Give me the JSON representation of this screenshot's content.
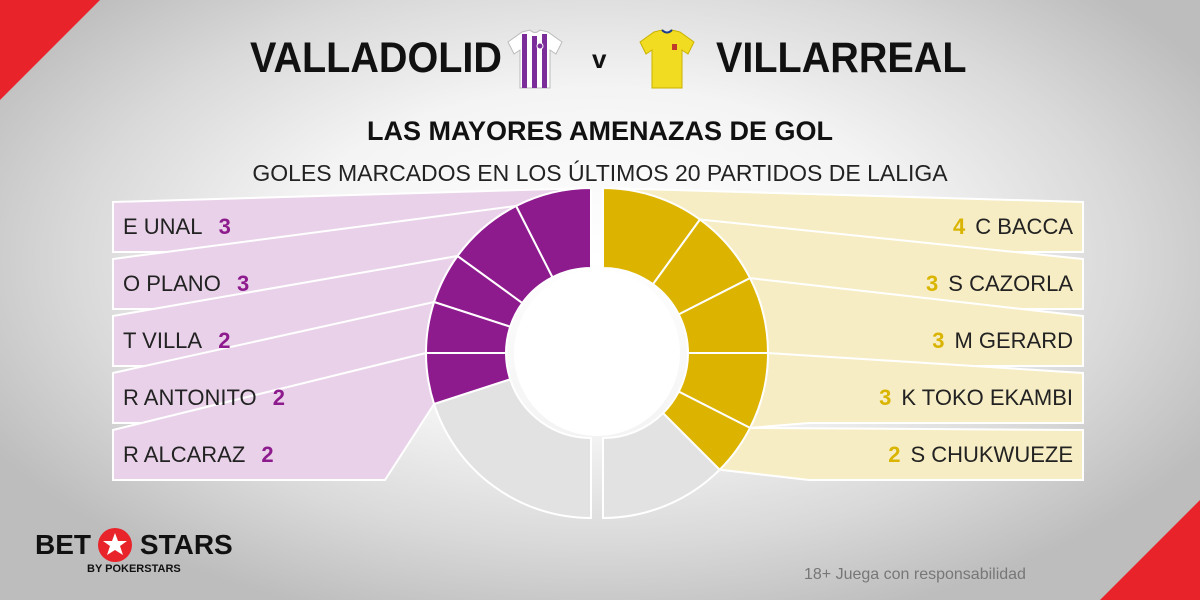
{
  "header": {
    "home_team": "VALLADOLID",
    "away_team": "VILLARREAL",
    "vs": "v",
    "title": "LAS MAYORES AMENAZAS DE GOL",
    "subtitle": "GOLES MARCADOS EN LOS ÚLTIMOS 20 PARTIDOS DE LALIGA"
  },
  "colors": {
    "home": "#8e1b8e",
    "home_light": "#e9d2e9",
    "away": "#dcb400",
    "away_light": "#f7edc4",
    "rest": "#e2e2e2",
    "accent": "#e8232a"
  },
  "chart_data": {
    "type": "pie",
    "series": [
      {
        "name": "VALLADOLID",
        "players": [
          {
            "label": "E UNAL",
            "value": 3
          },
          {
            "label": "O PLANO",
            "value": 3
          },
          {
            "label": "T VILLA",
            "value": 2
          },
          {
            "label": "R ANTONITO",
            "value": 2
          },
          {
            "label": "R ALCARAZ",
            "value": 2
          }
        ]
      },
      {
        "name": "VILLARREAL",
        "players": [
          {
            "label": "C BACCA",
            "value": 4
          },
          {
            "label": "S CAZORLA",
            "value": 3
          },
          {
            "label": "M GERARD",
            "value": 3
          },
          {
            "label": "K TOKO EKAMBI",
            "value": 3
          },
          {
            "label": "S CHUKWUEZE",
            "value": 2
          }
        ]
      }
    ]
  },
  "brand": {
    "left": "BET",
    "right": "STARS",
    "sub": "BY POKERSTARS"
  },
  "footer": {
    "responsible": "18+ Juega con responsabilidad"
  }
}
